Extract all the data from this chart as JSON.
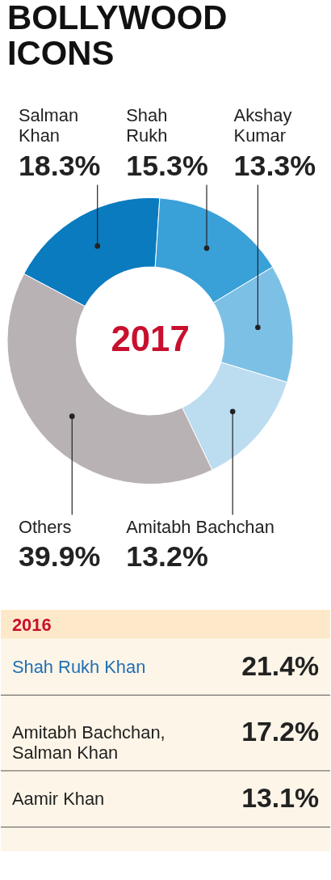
{
  "chart_data": [
    {
      "type": "donut",
      "title": "BOLLYWOOD ICONS",
      "categories": [
        "Salman Khan",
        "Shah Rukh",
        "Akshay Kumar",
        "Amitabh Bachchan",
        "Others"
      ],
      "values": [
        18.3,
        15.3,
        13.3,
        13.2,
        39.9
      ],
      "value_labels": [
        "18.3%",
        "15.3%",
        "13.3%",
        "13.2%",
        "39.9%"
      ],
      "colors": [
        "#0a7bbf",
        "#3aa0d8",
        "#7dc0e6",
        "#bcdcf0",
        "#b9b2b4"
      ],
      "annotations": [
        "2017"
      ]
    },
    {
      "type": "other",
      "title": "2016",
      "categories": [
        "Shah Rukh Khan",
        "Amitabh Bachchan, Salman Khan",
        "Aamir Khan"
      ],
      "values": [
        21.4,
        17.2,
        13.1
      ],
      "value_labels": [
        "21.4%",
        "17.2%",
        "13.1%"
      ]
    }
  ]
}
